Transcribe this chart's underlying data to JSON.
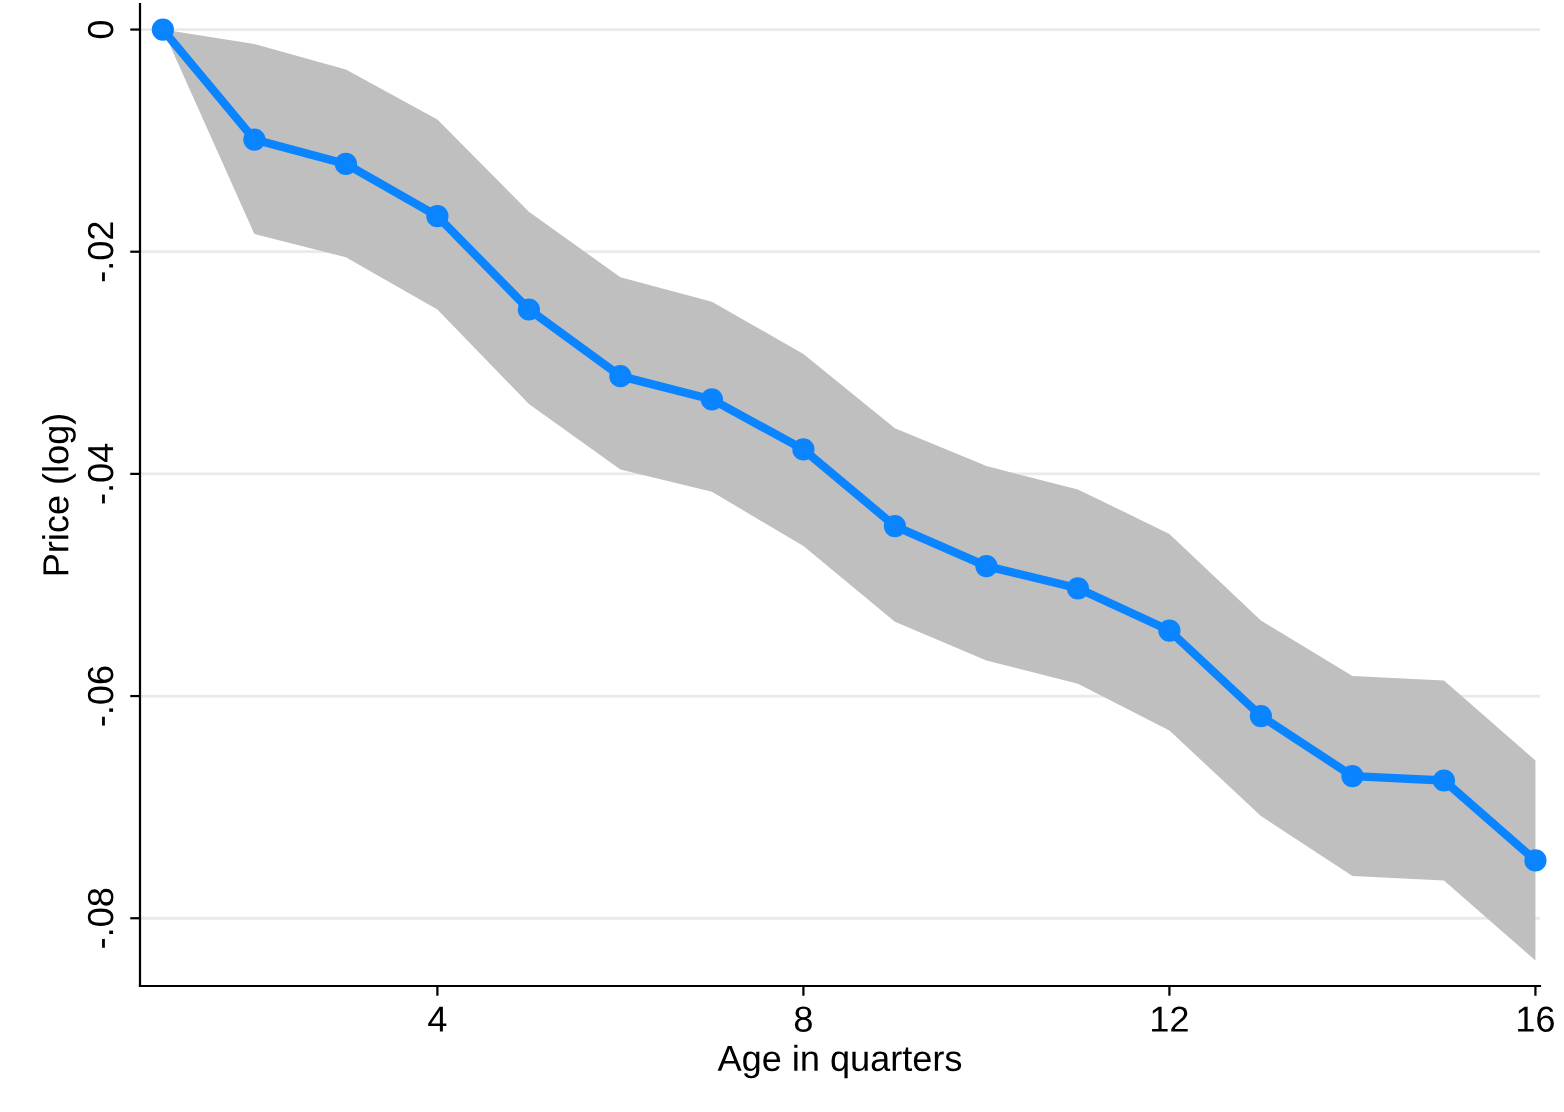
{
  "chart_data": {
    "type": "line",
    "xlabel": "Age in quarters",
    "ylabel": "Price (log)",
    "x": [
      1,
      2,
      3,
      4,
      5,
      6,
      7,
      8,
      9,
      10,
      11,
      12,
      13,
      14,
      15,
      16
    ],
    "series": [
      {
        "color": "#0a84ff",
        "values": [
          0,
          -0.0099,
          -0.0121,
          -0.0168,
          -0.0252,
          -0.0312,
          -0.0333,
          -0.0378,
          -0.0447,
          -0.0483,
          -0.0503,
          -0.0541,
          -0.0618,
          -0.0672,
          -0.0676,
          -0.0748
        ],
        "upper": [
          0,
          -0.0013,
          -0.0036,
          -0.0081,
          -0.0164,
          -0.0223,
          -0.0245,
          -0.0292,
          -0.0359,
          -0.0393,
          -0.0414,
          -0.0454,
          -0.0532,
          -0.0582,
          -0.0586,
          -0.0658
        ],
        "lower": [
          0,
          -0.0184,
          -0.0205,
          -0.0252,
          -0.0337,
          -0.0396,
          -0.0416,
          -0.0465,
          -0.0533,
          -0.0568,
          -0.0589,
          -0.0631,
          -0.0708,
          -0.0762,
          -0.0766,
          -0.0838
        ]
      }
    ],
    "xlim": [
      0.75,
      16.05
    ],
    "xticks": [
      4,
      8,
      12,
      16
    ],
    "ylim": [
      -0.0861,
      0.0023
    ],
    "yticks": [
      {
        "value": 0,
        "label": "0"
      },
      {
        "value": -0.02,
        "label": "-.02"
      },
      {
        "value": -0.04,
        "label": "-.04"
      },
      {
        "value": -0.06,
        "label": "-.06"
      },
      {
        "value": -0.08,
        "label": "-.08"
      }
    ],
    "grid": "y",
    "marker": "circle",
    "line_style": "solid"
  }
}
